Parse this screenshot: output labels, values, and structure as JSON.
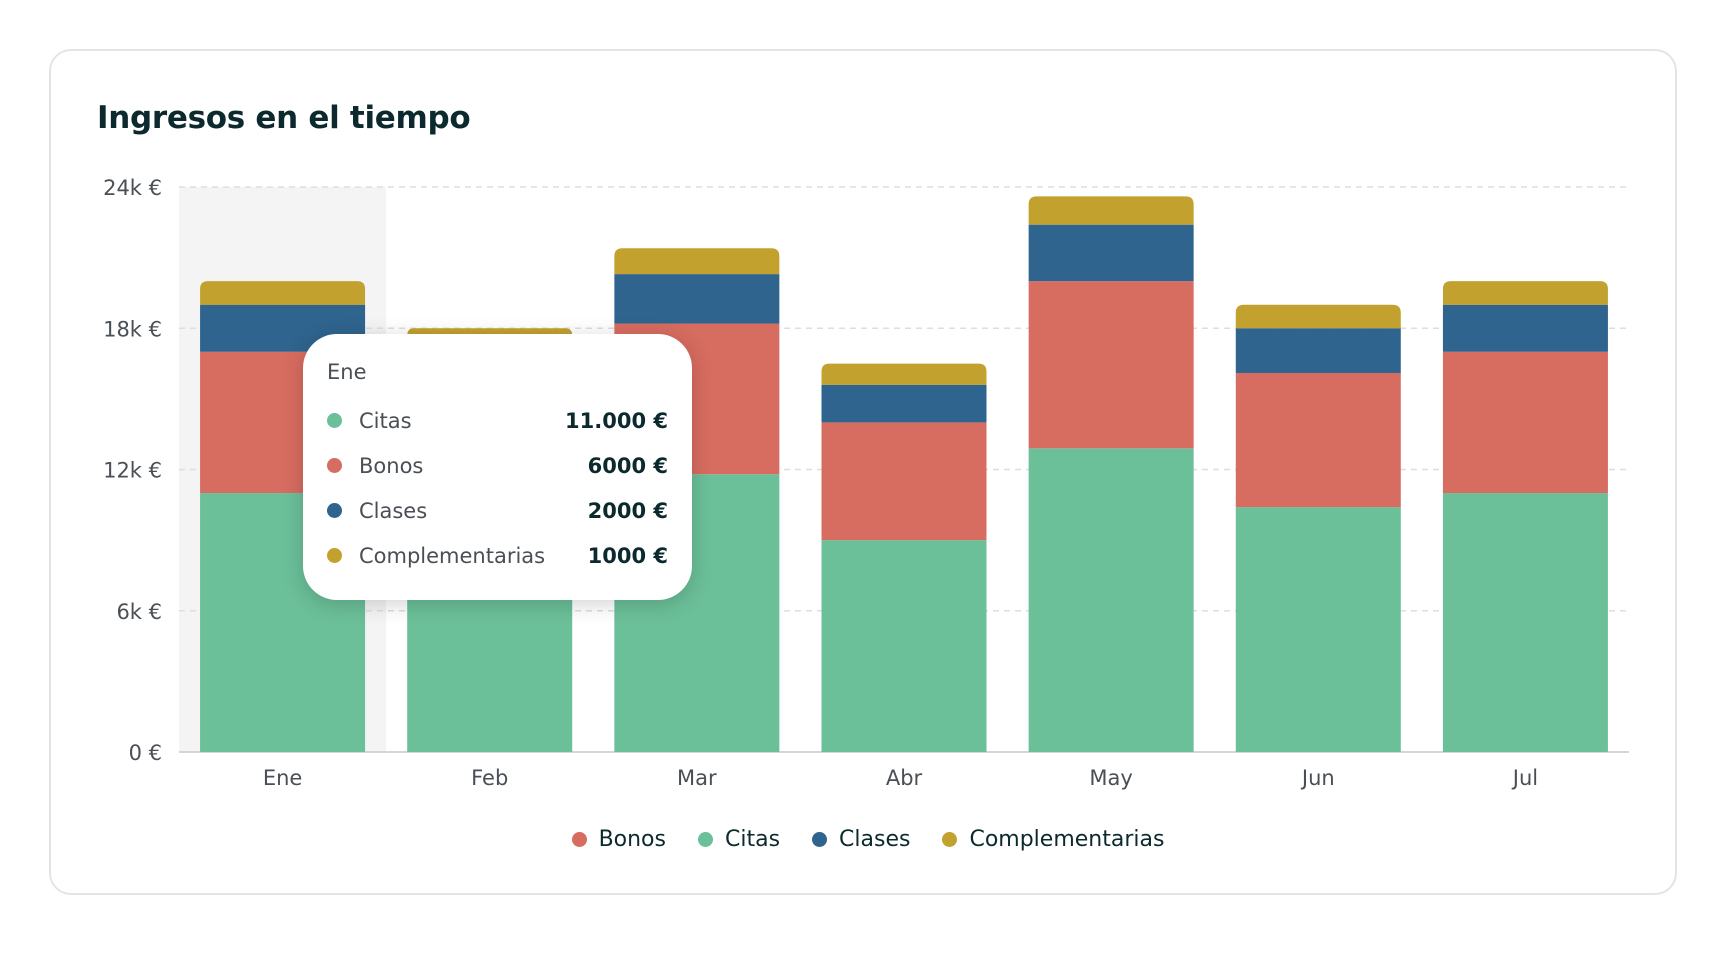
{
  "title": "Ingresos en el tiempo",
  "colors": {
    "Citas": "#6bbf99",
    "Bonos": "#d76c60",
    "Clases": "#2f648e",
    "Complementarias": "#c3a12e"
  },
  "chart_data": {
    "type": "bar",
    "stacked": true,
    "categories": [
      "Ene",
      "Feb",
      "Mar",
      "Abr",
      "May",
      "Jun",
      "Jul"
    ],
    "series": [
      {
        "name": "Citas",
        "values": [
          11000,
          17700,
          11800,
          9000,
          12900,
          10400,
          11000
        ]
      },
      {
        "name": "Bonos",
        "values": [
          6000,
          0,
          6400,
          5000,
          7100,
          5700,
          6000
        ]
      },
      {
        "name": "Clases",
        "values": [
          2000,
          0,
          2100,
          1600,
          2400,
          1900,
          2000
        ]
      },
      {
        "name": "Complementarias",
        "values": [
          1000,
          300,
          1100,
          900,
          1200,
          1000,
          1000
        ]
      }
    ],
    "yticks": [
      "0 €",
      "6k €",
      "12k €",
      "18k €",
      "24k €"
    ],
    "ylim": [
      0,
      24000
    ],
    "grid": true,
    "legend_position": "bottom",
    "highlighted_category": "Ene"
  },
  "tooltip": {
    "header": "Ene",
    "rows": [
      {
        "label": "Citas",
        "value": "11.000 €"
      },
      {
        "label": "Bonos",
        "value": "6000 €"
      },
      {
        "label": "Clases",
        "value": "2000 €"
      },
      {
        "label": "Complementarias",
        "value": "1000 €"
      }
    ]
  },
  "legend": [
    "Bonos",
    "Citas",
    "Clases",
    "Complementarias"
  ]
}
